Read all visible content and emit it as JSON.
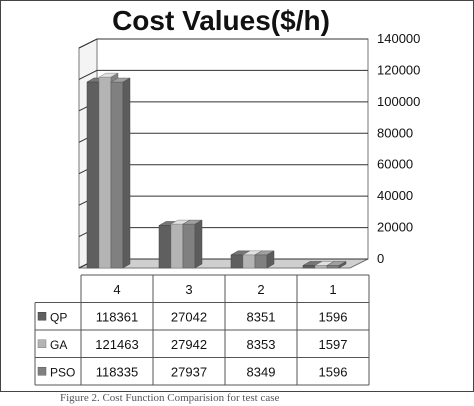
{
  "chart_data": {
    "type": "bar",
    "title": "Cost Values($/h)",
    "categories": [
      "4",
      "3",
      "2",
      "1"
    ],
    "series": [
      {
        "name": "QP",
        "values": [
          118361,
          27042,
          8351,
          1596
        ],
        "color": "#5f5f5f"
      },
      {
        "name": "GA",
        "values": [
          121463,
          27942,
          8353,
          1597
        ],
        "color": "#b4b4b4"
      },
      {
        "name": "PSO",
        "values": [
          118335,
          27937,
          8349,
          1596
        ],
        "color": "#808080"
      }
    ],
    "ylim": [
      0,
      140000
    ],
    "yticks": [
      "140000",
      "120000",
      "100000",
      "80000",
      "60000",
      "40000",
      "20000",
      "0"
    ],
    "grid": true,
    "legend_position": "data-table-left",
    "style": "3d-clustered-bar-with-data-table"
  },
  "caption": "Figure 2. Cost Function Comparision for test case"
}
